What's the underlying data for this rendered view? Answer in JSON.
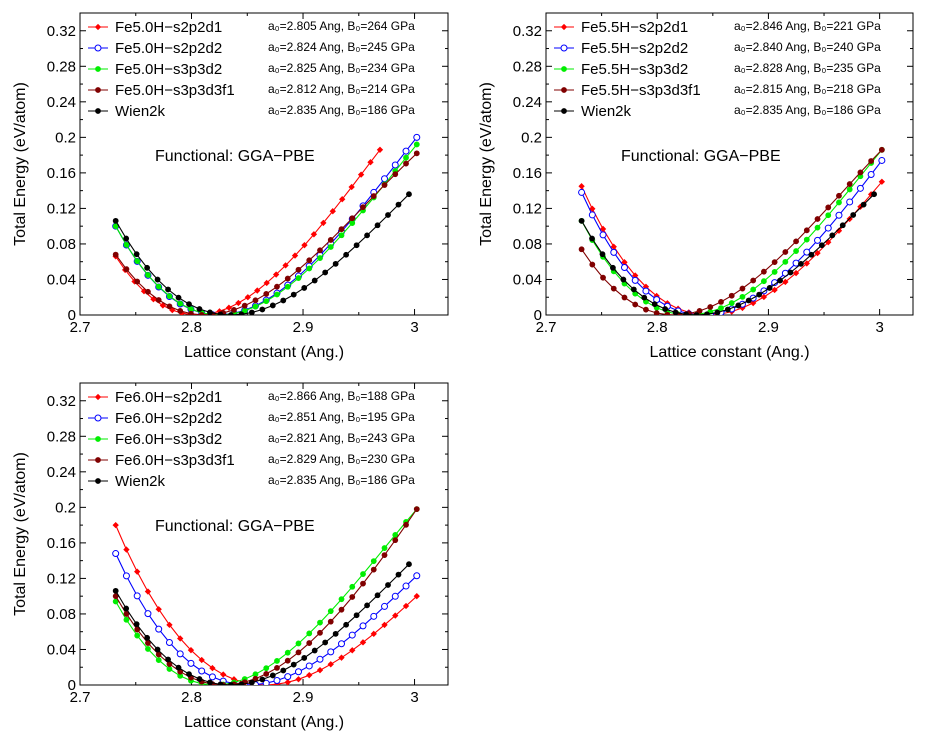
{
  "chart_data": [
    {
      "type": "line",
      "xlabel": "Lattice constant (Ang.)",
      "ylabel": "Total Energy (eV/atom)",
      "xlim": [
        2.7,
        3.03
      ],
      "ylim": [
        0,
        0.34
      ],
      "xticks": [
        "2.7",
        "2.8",
        "2.9",
        "3"
      ],
      "yticks": [
        "0",
        "0.04",
        "0.08",
        "0.12",
        "0.16",
        "0.2",
        "0.24",
        "0.28",
        "0.32"
      ],
      "grid": false,
      "legend_position": "top-left",
      "annotation": "Functional: GGA−PBE",
      "series": [
        {
          "name": "Fe5.0H−s2p2d1",
          "color": "#ff0000",
          "marker": "diamond",
          "params": "a₀=2.805 Ang, B₀=264 GPa",
          "a0": 2.805,
          "b0": 264,
          "x_start": 2.732,
          "x_end": 2.969,
          "y_start": 0.066,
          "y_end": 0.186
        },
        {
          "name": "Fe5.0H−s2p2d2",
          "color": "#0000ff",
          "marker": "open-circle",
          "params": "a₀=2.824 Ang, B₀=245 GPa",
          "a0": 2.824,
          "b0": 245,
          "x_start": 2.732,
          "x_end": 3.002,
          "y_start": 0.1,
          "y_end": 0.2
        },
        {
          "name": "Fe5.0H−s3p3d2",
          "color": "#00ee00",
          "marker": "filled-circle",
          "params": "a₀=2.825 Ang, B₀=234 GPa",
          "a0": 2.825,
          "b0": 234,
          "x_start": 2.732,
          "x_end": 3.002,
          "y_start": 0.1,
          "y_end": 0.192
        },
        {
          "name": "Fe5.0H−s3p3d3f1",
          "color": "#800000",
          "marker": "filled-circle",
          "params": "a₀=2.812 Ang, B₀=214 GPa",
          "a0": 2.812,
          "b0": 214,
          "x_start": 2.732,
          "x_end": 3.002,
          "y_start": 0.068,
          "y_end": 0.182
        },
        {
          "name": "Wien2k",
          "color": "#000000",
          "marker": "filled-circle",
          "params": "a₀=2.835 Ang, B₀=186 GPa",
          "a0": 2.835,
          "b0": 186,
          "x_start": 2.732,
          "x_end": 2.995,
          "y_start": 0.106,
          "y_end": 0.136
        }
      ]
    },
    {
      "type": "line",
      "xlabel": "Lattice constant (Ang.)",
      "ylabel": "Total Energy (eV/atom)",
      "xlim": [
        2.7,
        3.03
      ],
      "ylim": [
        0,
        0.34
      ],
      "xticks": [
        "2.7",
        "2.8",
        "2.9",
        "3"
      ],
      "yticks": [
        "0",
        "0.04",
        "0.08",
        "0.12",
        "0.16",
        "0.2",
        "0.24",
        "0.28",
        "0.32"
      ],
      "grid": false,
      "legend_position": "top-left",
      "annotation": "Functional: GGA−PBE",
      "series": [
        {
          "name": "Fe5.5H−s2p2d1",
          "color": "#ff0000",
          "marker": "diamond",
          "params": "a₀=2.846 Ang, B₀=221 GPa",
          "a0": 2.846,
          "b0": 221,
          "x_start": 2.732,
          "x_end": 3.002,
          "y_start": 0.145,
          "y_end": 0.15
        },
        {
          "name": "Fe5.5H−s2p2d2",
          "color": "#0000ff",
          "marker": "open-circle",
          "params": "a₀=2.840 Ang, B₀=240 GPa",
          "a0": 2.84,
          "b0": 240,
          "x_start": 2.732,
          "x_end": 3.002,
          "y_start": 0.138,
          "y_end": 0.174
        },
        {
          "name": "Fe5.5H−s3p3d2",
          "color": "#00ee00",
          "marker": "filled-circle",
          "params": "a₀=2.828 Ang, B₀=235 GPa",
          "a0": 2.828,
          "b0": 235,
          "x_start": 2.732,
          "x_end": 3.002,
          "y_start": 0.106,
          "y_end": 0.186
        },
        {
          "name": "Fe5.5H−s3p3d3f1",
          "color": "#800000",
          "marker": "filled-circle",
          "params": "a₀=2.815 Ang, B₀=218 GPa",
          "a0": 2.815,
          "b0": 218,
          "x_start": 2.732,
          "x_end": 3.002,
          "y_start": 0.074,
          "y_end": 0.186
        },
        {
          "name": "Wien2k",
          "color": "#000000",
          "marker": "filled-circle",
          "params": "a₀=2.835 Ang, B₀=186 GPa",
          "a0": 2.835,
          "b0": 186,
          "x_start": 2.732,
          "x_end": 2.995,
          "y_start": 0.106,
          "y_end": 0.136
        }
      ]
    },
    {
      "type": "line",
      "xlabel": "Lattice constant (Ang.)",
      "ylabel": "Total Energy (eV/atom)",
      "xlim": [
        2.7,
        3.03
      ],
      "ylim": [
        0,
        0.34
      ],
      "xticks": [
        "2.7",
        "2.8",
        "2.9",
        "3"
      ],
      "yticks": [
        "0",
        "0.04",
        "0.08",
        "0.12",
        "0.16",
        "0.2",
        "0.24",
        "0.28",
        "0.32"
      ],
      "grid": false,
      "legend_position": "top-left",
      "annotation": "Functional: GGA−PBE",
      "series": [
        {
          "name": "Fe6.0H−s2p2d1",
          "color": "#ff0000",
          "marker": "diamond",
          "params": "a₀=2.866 Ang, B₀=188 GPa",
          "a0": 2.866,
          "b0": 188,
          "x_start": 2.732,
          "x_end": 3.002,
          "y_start": 0.18,
          "y_end": 0.1
        },
        {
          "name": "Fe6.0H−s2p2d2",
          "color": "#0000ff",
          "marker": "open-circle",
          "params": "a₀=2.851 Ang, B₀=195 GPa",
          "a0": 2.851,
          "b0": 195,
          "x_start": 2.732,
          "x_end": 3.002,
          "y_start": 0.148,
          "y_end": 0.123
        },
        {
          "name": "Fe6.0H−s3p3d2",
          "color": "#00ee00",
          "marker": "filled-circle",
          "params": "a₀=2.821 Ang, B₀=243 GPa",
          "a0": 2.821,
          "b0": 243,
          "x_start": 2.732,
          "x_end": 3.002,
          "y_start": 0.094,
          "y_end": 0.198
        },
        {
          "name": "Fe6.0H−s3p3d3f1",
          "color": "#800000",
          "marker": "filled-circle",
          "params": "a₀=2.829 Ang, B₀=230 GPa",
          "a0": 2.829,
          "b0": 230,
          "x_start": 2.732,
          "x_end": 3.002,
          "y_start": 0.1,
          "y_end": 0.198
        },
        {
          "name": "Wien2k",
          "color": "#000000",
          "marker": "filled-circle",
          "params": "a₀=2.835 Ang, B₀=186 GPa",
          "a0": 2.835,
          "b0": 186,
          "x_start": 2.732,
          "x_end": 2.995,
          "y_start": 0.106,
          "y_end": 0.136
        }
      ]
    }
  ]
}
